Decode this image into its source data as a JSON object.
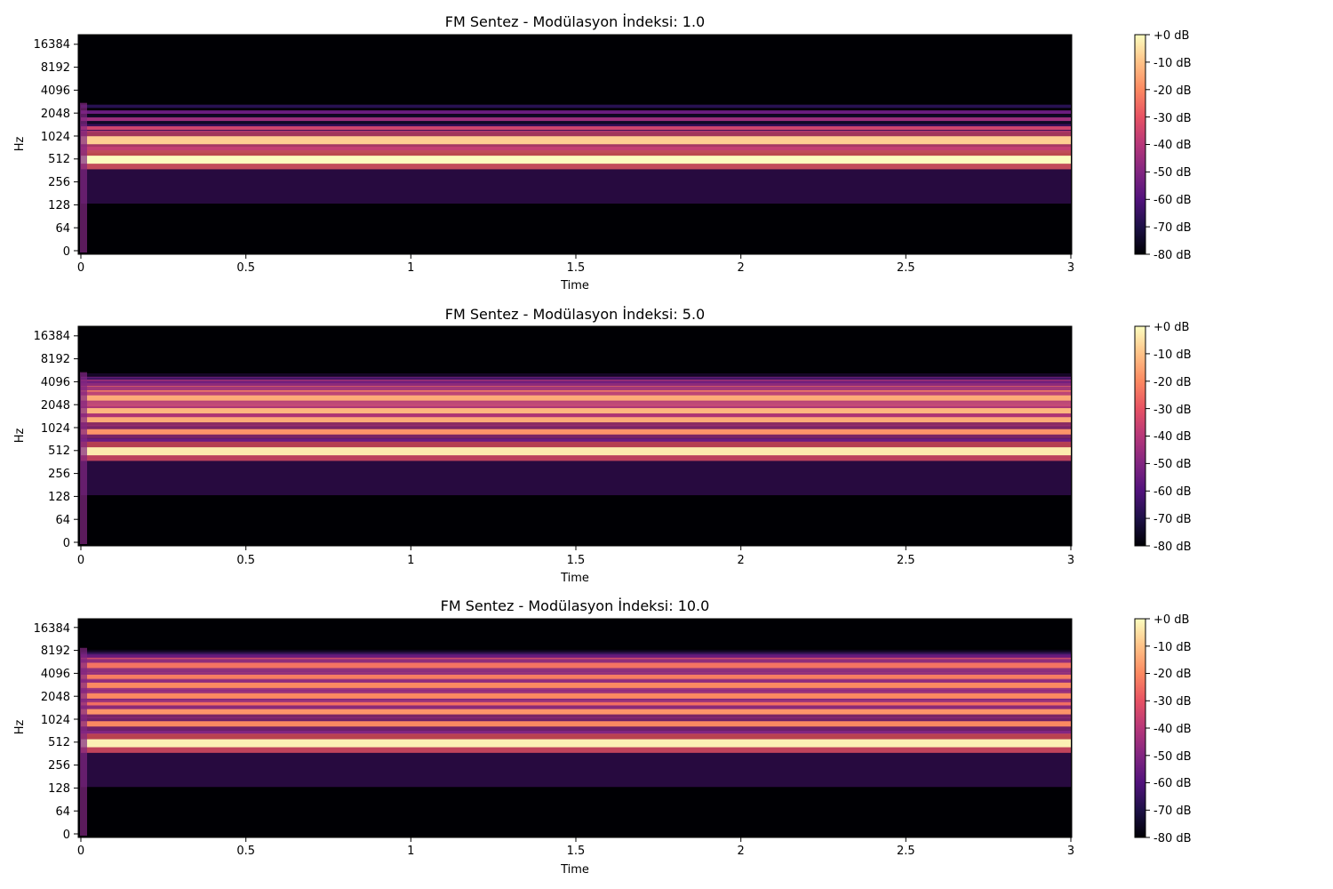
{
  "colors": {
    "magma": [
      "#000004",
      "#1d1147",
      "#51127c",
      "#822681",
      "#b73779",
      "#e75263",
      "#fc8961",
      "#fec287",
      "#fcfdbf"
    ]
  },
  "chart_data": [
    {
      "type": "heatmap",
      "title": "FM Sentez - Modülasyon İndeksi: 1.0",
      "modulation_index": 1.0,
      "xlabel": "Time",
      "ylabel": "Hz",
      "x_ticks": [
        "0",
        "0.5",
        "1",
        "1.5",
        "2",
        "2.5",
        "3"
      ],
      "x_tick_values": [
        0,
        0.5,
        1,
        1.5,
        2,
        2.5,
        3
      ],
      "xlim": [
        0,
        3
      ],
      "y_scale": "log2",
      "y_ticks": [
        "0",
        "64",
        "128",
        "256",
        "512",
        "1024",
        "2048",
        "4096",
        "8192",
        "16384"
      ],
      "colorbar_label_ticks": [
        "+0 dB",
        "-10 dB",
        "-20 dB",
        "-30 dB",
        "-40 dB",
        "-50 dB",
        "-60 dB",
        "-70 dB",
        "-80 dB"
      ],
      "zlim_db": [
        -80,
        0
      ],
      "harmonic_bands": [
        {
          "hz": 500,
          "db": 0
        },
        {
          "hz": 900,
          "db": -8
        },
        {
          "hz": 700,
          "db": -42
        },
        {
          "hz": 1300,
          "db": -35
        },
        {
          "hz": 1700,
          "db": -45
        },
        {
          "hz": 2100,
          "db": -55
        },
        {
          "hz": 2500,
          "db": -68
        }
      ]
    },
    {
      "type": "heatmap",
      "title": "FM Sentez - Modülasyon İndeksi: 5.0",
      "modulation_index": 5.0,
      "xlabel": "Time",
      "ylabel": "Hz",
      "x_ticks": [
        "0",
        "0.5",
        "1",
        "1.5",
        "2",
        "2.5",
        "3"
      ],
      "x_tick_values": [
        0,
        0.5,
        1,
        1.5,
        2,
        2.5,
        3
      ],
      "xlim": [
        0,
        3
      ],
      "y_scale": "log2",
      "y_ticks": [
        "0",
        "64",
        "128",
        "256",
        "512",
        "1024",
        "2048",
        "4096",
        "8192",
        "16384"
      ],
      "colorbar_label_ticks": [
        "+0 dB",
        "-10 dB",
        "-20 dB",
        "-30 dB",
        "-40 dB",
        "-50 dB",
        "-60 dB",
        "-70 dB",
        "-80 dB"
      ],
      "zlim_db": [
        -80,
        0
      ],
      "harmonic_bands": [
        {
          "hz": 500,
          "db": -3
        },
        {
          "hz": 700,
          "db": -55
        },
        {
          "hz": 900,
          "db": -18
        },
        {
          "hz": 1300,
          "db": -14
        },
        {
          "hz": 1700,
          "db": -12
        },
        {
          "hz": 2100,
          "db": -18
        },
        {
          "hz": 2500,
          "db": -14
        },
        {
          "hz": 2900,
          "db": -20
        },
        {
          "hz": 3300,
          "db": -24
        },
        {
          "hz": 3700,
          "db": -30
        },
        {
          "hz": 4100,
          "db": -38
        },
        {
          "hz": 4500,
          "db": -50
        },
        {
          "hz": 4900,
          "db": -62
        }
      ]
    },
    {
      "type": "heatmap",
      "title": "FM Sentez - Modülasyon İndeksi: 10.0",
      "modulation_index": 10.0,
      "xlabel": "Time",
      "ylabel": "Hz",
      "x_ticks": [
        "0",
        "0.5",
        "1",
        "1.5",
        "2",
        "2.5",
        "3"
      ],
      "x_tick_values": [
        0,
        0.5,
        1,
        1.5,
        2,
        2.5,
        3
      ],
      "xlim": [
        0,
        3
      ],
      "y_scale": "log2",
      "y_ticks": [
        "0",
        "64",
        "128",
        "256",
        "512",
        "1024",
        "2048",
        "4096",
        "8192",
        "16384"
      ],
      "colorbar_label_ticks": [
        "+0 dB",
        "-10 dB",
        "-20 dB",
        "-30 dB",
        "-40 dB",
        "-50 dB",
        "-60 dB",
        "-70 dB",
        "-80 dB"
      ],
      "zlim_db": [
        -80,
        0
      ],
      "harmonic_bands": [
        {
          "hz": 500,
          "db": -2
        },
        {
          "hz": 700,
          "db": -50
        },
        {
          "hz": 900,
          "db": -20
        },
        {
          "hz": 1300,
          "db": -18
        },
        {
          "hz": 1700,
          "db": -25
        },
        {
          "hz": 2100,
          "db": -20
        },
        {
          "hz": 2500,
          "db": -24
        },
        {
          "hz": 2900,
          "db": -20
        },
        {
          "hz": 3300,
          "db": -26
        },
        {
          "hz": 3700,
          "db": -22
        },
        {
          "hz": 4100,
          "db": -26
        },
        {
          "hz": 4500,
          "db": -24
        },
        {
          "hz": 4900,
          "db": -28
        },
        {
          "hz": 5300,
          "db": -24
        },
        {
          "hz": 5700,
          "db": -30
        },
        {
          "hz": 6100,
          "db": -28
        },
        {
          "hz": 6500,
          "db": -34
        },
        {
          "hz": 6900,
          "db": -40
        },
        {
          "hz": 7300,
          "db": -48
        },
        {
          "hz": 7700,
          "db": -56
        },
        {
          "hz": 8100,
          "db": -65
        }
      ]
    }
  ]
}
